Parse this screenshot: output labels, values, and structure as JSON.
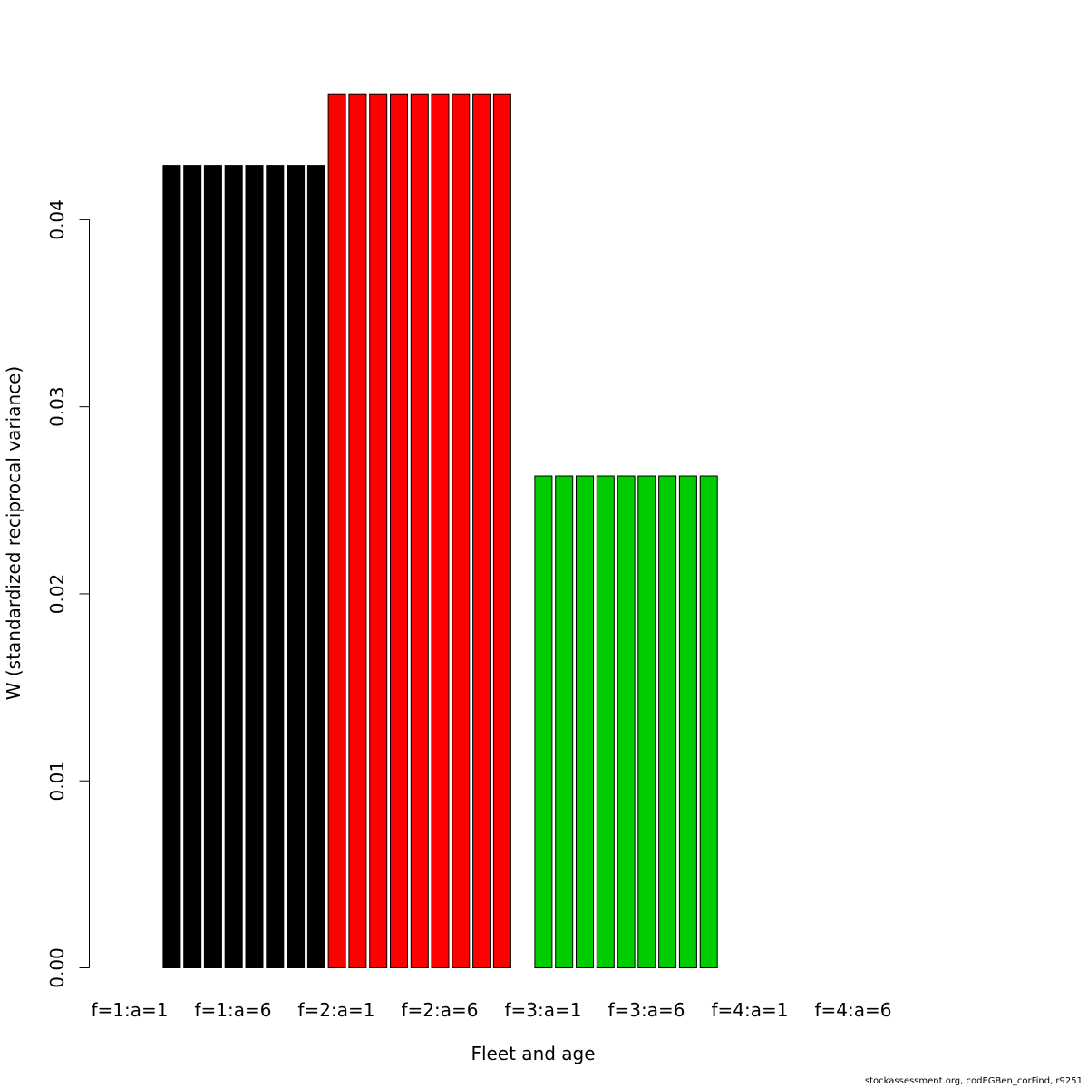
{
  "chart_data": {
    "type": "bar",
    "title": "",
    "xlabel": "Fleet and age",
    "ylabel": "W (standardized reciprocal variance)",
    "ylim": [
      0,
      0.047
    ],
    "yticks": [
      "0.00",
      "0.01",
      "0.02",
      "0.03",
      "0.04"
    ],
    "x_tick_labels": [
      "f=1:a=1",
      "f=1:a=6",
      "f=2:a=1",
      "f=2:a=6",
      "f=3:a=1",
      "f=3:a=6",
      "f=4:a=1",
      "f=4:a=6"
    ],
    "categories": [
      "f=1:a=1",
      "f=1:a=2",
      "f=1:a=3",
      "f=1:a=4",
      "f=1:a=5",
      "f=1:a=6",
      "f=1:a=7",
      "f=1:a=8",
      "f=2:a=1",
      "f=2:a=2",
      "f=2:a=3",
      "f=2:a=4",
      "f=2:a=5",
      "f=2:a=6",
      "f=2:a=7",
      "f=2:a=8",
      "f=2:a=9",
      "f=3:a=1",
      "f=3:a=2",
      "f=3:a=3",
      "f=3:a=4",
      "f=3:a=5",
      "f=3:a=6",
      "f=3:a=7",
      "f=3:a=8",
      "f=3:a=9"
    ],
    "bar_slots": [
      1,
      2,
      3,
      4,
      5,
      6,
      7,
      8,
      9,
      10,
      11,
      12,
      13,
      14,
      15,
      16,
      17,
      19,
      20,
      21,
      22,
      23,
      24,
      25,
      26,
      27
    ],
    "total_slots": 36,
    "values": [
      0.0429,
      0.0429,
      0.0429,
      0.0429,
      0.0429,
      0.0429,
      0.0429,
      0.0429,
      0.0467,
      0.0467,
      0.0467,
      0.0467,
      0.0467,
      0.0467,
      0.0467,
      0.0467,
      0.0467,
      0.0263,
      0.0263,
      0.0263,
      0.0263,
      0.0263,
      0.0263,
      0.0263,
      0.0263,
      0.0263
    ],
    "fleet": [
      1,
      1,
      1,
      1,
      1,
      1,
      1,
      1,
      2,
      2,
      2,
      2,
      2,
      2,
      2,
      2,
      2,
      3,
      3,
      3,
      3,
      3,
      3,
      3,
      3,
      3
    ],
    "fleet_colors": {
      "1": "#000000",
      "2": "#ff0000",
      "3": "#00cd00"
    },
    "grid": false,
    "legend": "none"
  },
  "footer_text": "stockassessment.org, codEGBen_corFind, r9251"
}
